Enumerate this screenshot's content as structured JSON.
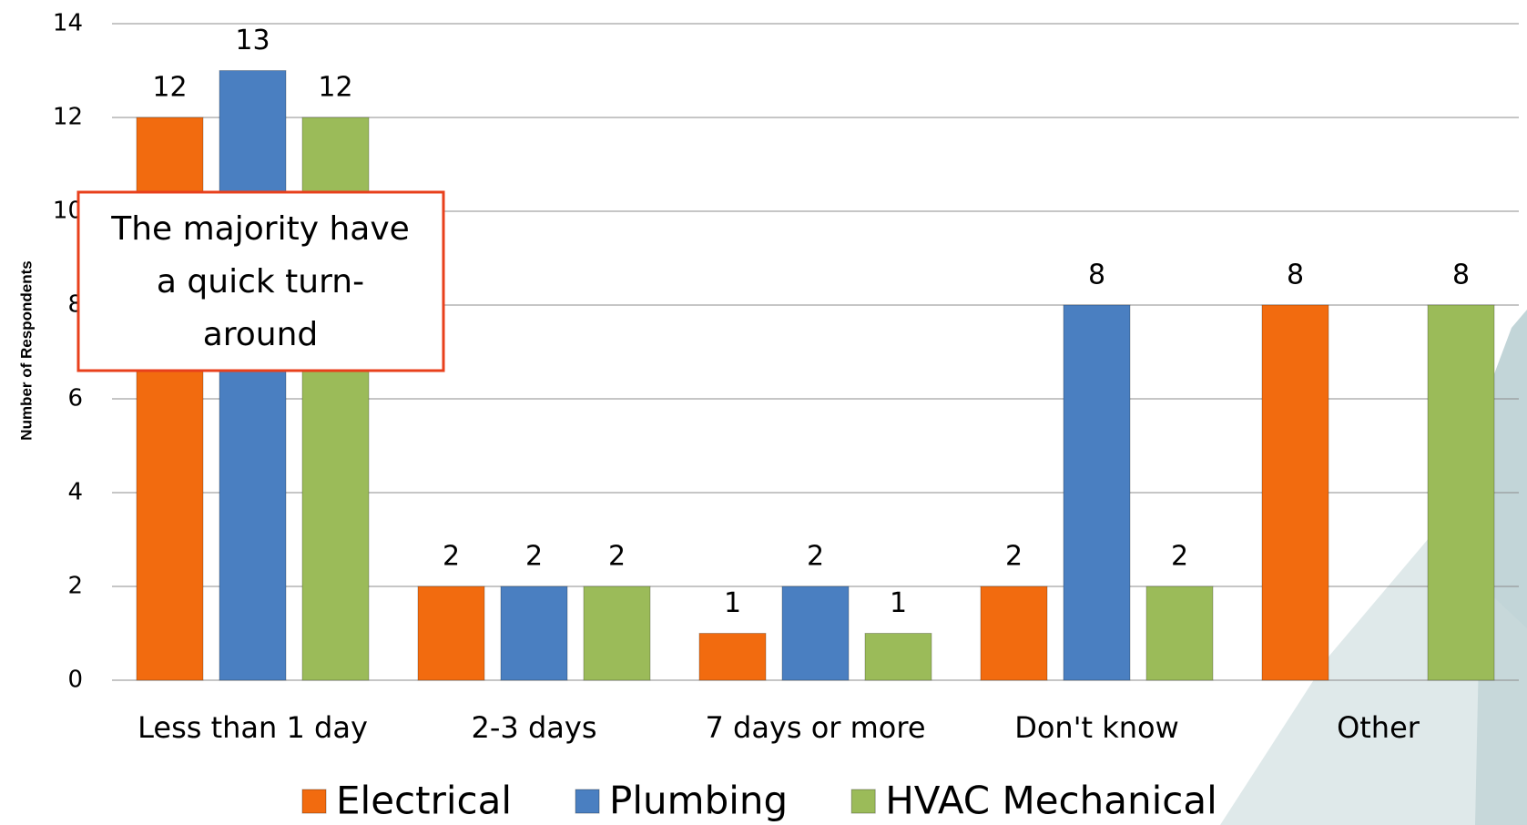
{
  "chart_data": {
    "type": "bar",
    "y_label": "Number of Respondents",
    "categories": [
      "Less than 1 day",
      "2-3 days",
      "7 days or more",
      "Don't know",
      "Other"
    ],
    "series": [
      {
        "name": "Electrical",
        "color": "#f26b0f",
        "values": [
          12,
          2,
          1,
          2,
          8
        ]
      },
      {
        "name": "Plumbing",
        "color": "#4a7fc1",
        "values": [
          13,
          2,
          2,
          8,
          null
        ]
      },
      {
        "name": "HVAC Mechanical",
        "color": "#9bbb59",
        "values": [
          12,
          2,
          1,
          2,
          8
        ]
      }
    ],
    "ylim": [
      0,
      14
    ],
    "yticks": [
      0,
      2,
      4,
      6,
      8,
      10,
      12,
      14
    ],
    "grid": true,
    "annotation": [
      "The majority have",
      "a quick turn-",
      "around"
    ]
  }
}
